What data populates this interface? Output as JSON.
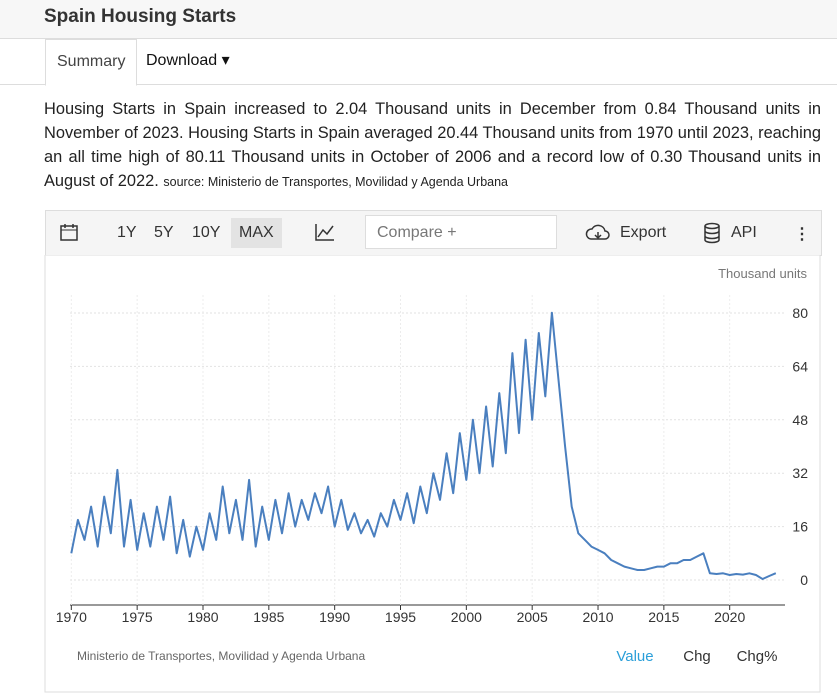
{
  "header": {
    "title": "Spain Housing Starts"
  },
  "tabs": [
    "Summary",
    "Download"
  ],
  "description": "Housing Starts in Spain increased to 2.04 Thousand units in December from 0.84 Thousand units in November of 2023. Housing Starts in Spain averaged 20.44 Thousand units from 1970 until 2023, reaching an all time high of 80.11 Thousand units in October of 2006 and a record low of 0.30 Thousand units in August of 2022.",
  "source_note": "source: Ministerio de Transportes, Movilidad y Agenda Urbana",
  "toolbar": {
    "ranges": [
      "1Y",
      "5Y",
      "10Y",
      "MAX"
    ],
    "compare": "Compare +",
    "export": "Export",
    "api": "API"
  },
  "chart_data": {
    "type": "line",
    "unit_label": "Thousand units",
    "color": "#4a7fbf",
    "x": [
      1970,
      1970.5,
      1971,
      1971.5,
      1972,
      1972.5,
      1973,
      1973.5,
      1974,
      1974.5,
      1975,
      1975.5,
      1976,
      1976.5,
      1977,
      1977.5,
      1978,
      1978.5,
      1979,
      1979.5,
      1980,
      1980.5,
      1981,
      1981.5,
      1982,
      1982.5,
      1983,
      1983.5,
      1984,
      1984.5,
      1985,
      1985.5,
      1986,
      1986.5,
      1987,
      1987.5,
      1988,
      1988.5,
      1989,
      1989.5,
      1990,
      1990.5,
      1991,
      1991.5,
      1992,
      1992.5,
      1993,
      1993.5,
      1994,
      1994.5,
      1995,
      1995.5,
      1996,
      1996.5,
      1997,
      1997.5,
      1998,
      1998.5,
      1999,
      1999.5,
      2000,
      2000.5,
      2001,
      2001.5,
      2002,
      2002.5,
      2003,
      2003.5,
      2004,
      2004.5,
      2005,
      2005.5,
      2006,
      2006.5,
      2007,
      2007.5,
      2008,
      2008.5,
      2009,
      2009.5,
      2010,
      2010.5,
      2011,
      2011.5,
      2012,
      2012.5,
      2013,
      2013.5,
      2014,
      2014.5,
      2015,
      2015.5,
      2016,
      2016.5,
      2017,
      2017.5,
      2018,
      2018.5,
      2019,
      2019.5,
      2020,
      2020.5,
      2021,
      2021.5,
      2022,
      2022.5,
      2023,
      2023.5
    ],
    "values": [
      8,
      18,
      12,
      22,
      10,
      25,
      14,
      33,
      10,
      24,
      9,
      20,
      10,
      22,
      12,
      25,
      8,
      18,
      7,
      16,
      9,
      20,
      12,
      28,
      14,
      24,
      12,
      30,
      10,
      22,
      12,
      24,
      14,
      26,
      16,
      24,
      18,
      26,
      20,
      28,
      16,
      24,
      15,
      20,
      14,
      18,
      13,
      20,
      16,
      24,
      18,
      26,
      17,
      28,
      20,
      32,
      24,
      38,
      26,
      44,
      30,
      48,
      32,
      52,
      34,
      56,
      38,
      68,
      44,
      72,
      48,
      74,
      55,
      80.11,
      60,
      40,
      22,
      14,
      12,
      10,
      9,
      8,
      6,
      5,
      4,
      3.5,
      3,
      3,
      3.5,
      4,
      4,
      5,
      5,
      6,
      6,
      7,
      8,
      2,
      1.8,
      2,
      1.5,
      1.8,
      1.6,
      2,
      1.5,
      0.3,
      1.2,
      2.04
    ],
    "xlim": [
      1969.9,
      2024.2
    ],
    "xticks": [
      1970,
      1975,
      1980,
      1985,
      1990,
      1995,
      2000,
      2005,
      2010,
      2015,
      2020
    ],
    "ylim": [
      -7.5,
      85.4
    ],
    "yticks": [
      0,
      16,
      32,
      48,
      64,
      80
    ],
    "grid": true,
    "source": "Ministerio de Transportes, Movilidad y Agenda Urbana"
  },
  "footer_tabs": [
    "Value",
    "Chg",
    "Chg%"
  ]
}
